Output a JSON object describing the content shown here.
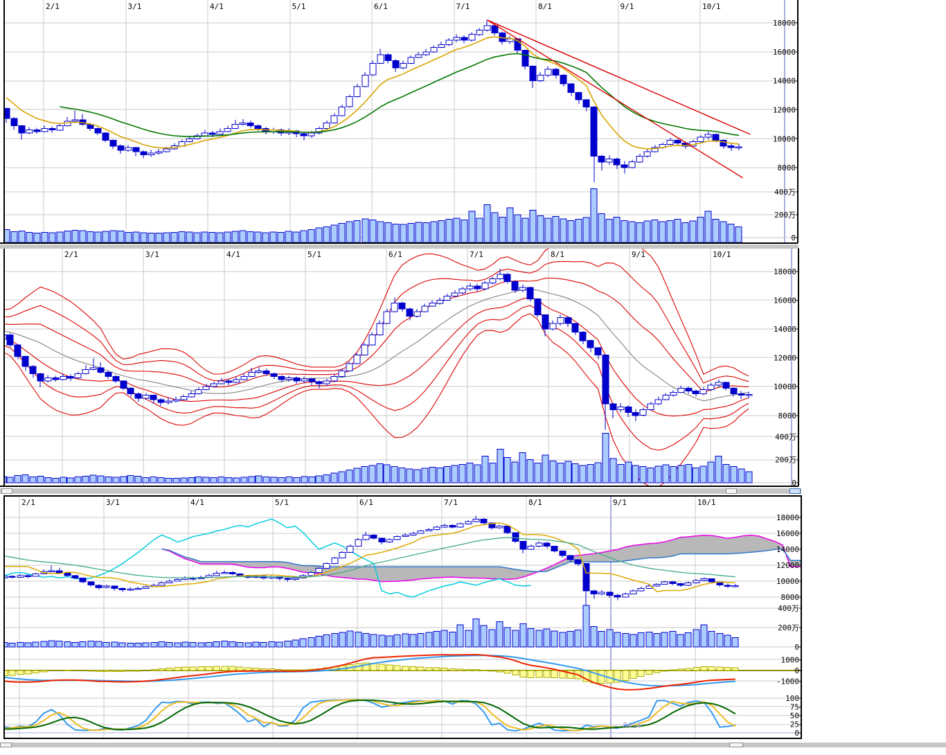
{
  "app": {
    "description": "three stacked daily stock chart panels with volume and indicators"
  },
  "annotation": {
    "code_label": "- 8414"
  },
  "colors": {
    "candle": "#0000cc",
    "candle_up_fill": "#ffffff",
    "volume_fill": "#aaccff",
    "grid": "#c9c9c9",
    "special_grid": "#a8aede",
    "border": "#000000",
    "ma_short": "#d9a400",
    "ma_long": "#007700",
    "trendline": "#dd0000",
    "band": "#dd0000",
    "band_mid": "#808080",
    "cloud": "#b8b8b8",
    "span_a": "#ee00ee",
    "span_b": "#3377cc",
    "chikou": "#00ccdd",
    "tenkan": "#ddaa00",
    "kijun_ema": "#44aa88",
    "macd_line": "#ee2200",
    "macd_signal": "#3399ee",
    "macd_hist_fill": "#ffff99",
    "macd_hist_stroke": "#aaaa00",
    "macd_zero": "#8b8b00",
    "stoch_k": "#3399ee",
    "stoch_d": "#eebb22",
    "stoch_sd": "#006600",
    "label": "#000000",
    "code_label": "#9999cc",
    "scrollbar": "#c6c6c6"
  },
  "chart_data": {
    "type": "candlestick-multi-panel",
    "x_axis_months": [
      "2/1",
      "3/1",
      "4/1",
      "5/1",
      "6/1",
      "7/1",
      "8/1",
      "9/1",
      "10/1"
    ],
    "y_axis": {
      "price_tick_labels": [
        "18000",
        "16000",
        "14000",
        "12000",
        "10000",
        "8000"
      ],
      "price_tick_values": [
        18000,
        16000,
        14000,
        12000,
        10000,
        8000
      ],
      "volume_tick_labels": [
        "400万",
        "200万",
        "0"
      ],
      "volume_tick_values": [
        400,
        200,
        0
      ],
      "macd_tick_labels": [
        "1000",
        "0",
        "-1000"
      ],
      "macd_tick_values": [
        1000,
        0,
        -1000
      ],
      "stoch_tick_labels": [
        "100",
        "75",
        "50",
        "25",
        "0"
      ],
      "stoch_tick_values": [
        100,
        75,
        50,
        25,
        0
      ]
    },
    "panels": [
      {
        "id": "ma-panel",
        "overlays": [
          "short-ma",
          "long-ma",
          "trendlines",
          "volume"
        ]
      },
      {
        "id": "bollinger-panel",
        "overlays": [
          "mid-line",
          "bands-1-2-3-sigma",
          "volume"
        ]
      },
      {
        "id": "ichimoku-panel",
        "overlays": [
          "cloud",
          "tenkan",
          "kijun-ema",
          "chikou",
          "volume",
          "macd",
          "stochastics"
        ]
      }
    ],
    "pre_history_closes": [
      14800,
      14500,
      14150,
      13900,
      13700,
      13500,
      13400,
      13300
    ],
    "ohlc": [
      [
        13300,
        13750,
        13150,
        13600
      ],
      [
        13600,
        13700,
        12750,
        12900
      ],
      [
        12900,
        12950,
        11900,
        12100
      ],
      [
        12100,
        12150,
        11100,
        11400
      ],
      [
        11400,
        11500,
        10600,
        10900
      ],
      [
        10900,
        10950,
        9950,
        10400
      ],
      [
        10400,
        10800,
        10300,
        10600
      ],
      [
        10600,
        10750,
        10350,
        10500
      ],
      [
        10500,
        10900,
        10450,
        10700
      ],
      [
        10700,
        10850,
        10400,
        10600
      ],
      [
        10600,
        11050,
        10550,
        10900
      ],
      [
        10900,
        11500,
        10850,
        11200
      ],
      [
        11200,
        11950,
        11150,
        11300
      ],
      [
        11300,
        11700,
        10900,
        11000
      ],
      [
        11000,
        11100,
        10550,
        10700
      ],
      [
        10700,
        10800,
        10250,
        10400
      ],
      [
        10400,
        10450,
        9750,
        9900
      ],
      [
        9900,
        9950,
        9300,
        9500
      ],
      [
        9500,
        9600,
        8950,
        9200
      ],
      [
        9200,
        9550,
        9100,
        9400
      ],
      [
        9400,
        9450,
        8800,
        9100
      ],
      [
        9100,
        9200,
        8650,
        8900
      ],
      [
        8900,
        9250,
        8750,
        9000
      ],
      [
        9000,
        9300,
        8900,
        9100
      ],
      [
        9100,
        9450,
        9050,
        9300
      ],
      [
        9300,
        9700,
        9250,
        9500
      ],
      [
        9500,
        9950,
        9450,
        9800
      ],
      [
        9800,
        10200,
        9750,
        10000
      ],
      [
        10000,
        10350,
        9950,
        10200
      ],
      [
        10200,
        10600,
        10150,
        10400
      ],
      [
        10400,
        10550,
        10100,
        10300
      ],
      [
        10300,
        10700,
        10250,
        10500
      ],
      [
        10500,
        10900,
        10450,
        10700
      ],
      [
        10700,
        11300,
        10650,
        11000
      ],
      [
        11000,
        11350,
        10900,
        11100
      ],
      [
        11100,
        11250,
        10750,
        10900
      ],
      [
        10900,
        11000,
        10550,
        10700
      ],
      [
        10700,
        10800,
        10300,
        10500
      ],
      [
        10500,
        10750,
        10350,
        10600
      ],
      [
        10600,
        10700,
        10200,
        10400
      ],
      [
        10400,
        10700,
        10250,
        10550
      ],
      [
        10550,
        10600,
        10100,
        10350
      ],
      [
        10350,
        10450,
        9900,
        10200
      ],
      [
        10200,
        10550,
        10050,
        10400
      ],
      [
        10400,
        10850,
        10300,
        10700
      ],
      [
        10700,
        11250,
        10600,
        11100
      ],
      [
        11100,
        11750,
        11050,
        11600
      ],
      [
        11600,
        12350,
        11550,
        12200
      ],
      [
        12200,
        13050,
        12150,
        12900
      ],
      [
        12900,
        13800,
        12850,
        13600
      ],
      [
        13600,
        14600,
        13550,
        14400
      ],
      [
        14400,
        15400,
        14350,
        15200
      ],
      [
        15200,
        16200,
        15150,
        15800
      ],
      [
        15800,
        15900,
        15200,
        15400
      ],
      [
        15400,
        15500,
        14600,
        14900
      ],
      [
        14900,
        15400,
        14800,
        15200
      ],
      [
        15200,
        15750,
        15150,
        15600
      ],
      [
        15600,
        16000,
        15550,
        15800
      ],
      [
        15800,
        16200,
        15700,
        16000
      ],
      [
        16000,
        16450,
        15950,
        16300
      ],
      [
        16300,
        16700,
        16250,
        16500
      ],
      [
        16500,
        16950,
        16400,
        16800
      ],
      [
        16800,
        17200,
        16650,
        17000
      ],
      [
        17000,
        17150,
        16600,
        16800
      ],
      [
        16800,
        17350,
        16700,
        17200
      ],
      [
        17200,
        17650,
        17100,
        17500
      ],
      [
        17500,
        18200,
        17400,
        17800
      ],
      [
        17800,
        17900,
        17150,
        17300
      ],
      [
        17300,
        17400,
        16500,
        16700
      ],
      [
        16700,
        17100,
        16550,
        16900
      ],
      [
        16900,
        16950,
        15900,
        16100
      ],
      [
        16100,
        16150,
        14800,
        15000
      ],
      [
        15000,
        15050,
        13500,
        14000
      ],
      [
        14000,
        14600,
        13900,
        14400
      ],
      [
        14400,
        15000,
        14250,
        14800
      ],
      [
        14800,
        14900,
        14150,
        14400
      ],
      [
        14400,
        14450,
        13600,
        13800
      ],
      [
        13800,
        13850,
        12950,
        13200
      ],
      [
        13200,
        13250,
        12400,
        12700
      ],
      [
        12700,
        12750,
        11900,
        12200
      ],
      [
        12200,
        12250,
        7000,
        8800
      ],
      [
        8800,
        8900,
        7800,
        8400
      ],
      [
        8400,
        8850,
        8200,
        8600
      ],
      [
        8600,
        8700,
        7900,
        8200
      ],
      [
        8200,
        8450,
        7600,
        8000
      ],
      [
        8000,
        8550,
        7950,
        8400
      ],
      [
        8400,
        8950,
        8350,
        8800
      ],
      [
        8800,
        9300,
        8700,
        9100
      ],
      [
        9100,
        9550,
        9050,
        9400
      ],
      [
        9400,
        9750,
        9300,
        9600
      ],
      [
        9600,
        10050,
        9550,
        9900
      ],
      [
        9900,
        10000,
        9500,
        9700
      ],
      [
        9700,
        9800,
        9300,
        9500
      ],
      [
        9500,
        9950,
        9400,
        9800
      ],
      [
        9800,
        10250,
        9700,
        10100
      ],
      [
        10100,
        10500,
        9950,
        10300
      ],
      [
        10300,
        10350,
        9750,
        9900
      ],
      [
        9900,
        9950,
        9300,
        9500
      ],
      [
        9500,
        9700,
        9150,
        9400
      ],
      [
        9400,
        9650,
        9200,
        9450
      ]
    ],
    "volume_man": [
      55,
      48,
      62,
      70,
      52,
      58,
      45,
      40,
      47,
      42,
      50,
      58,
      65,
      60,
      52,
      48,
      55,
      62,
      58,
      45,
      50,
      44,
      40,
      38,
      42,
      46,
      52,
      48,
      44,
      50,
      46,
      42,
      48,
      55,
      60,
      52,
      48,
      44,
      50,
      46,
      55,
      50,
      60,
      70,
      85,
      95,
      110,
      125,
      140,
      150,
      165,
      155,
      140,
      130,
      120,
      115,
      125,
      135,
      130,
      140,
      150,
      160,
      170,
      155,
      230,
      170,
      290,
      220,
      180,
      260,
      200,
      170,
      240,
      190,
      170,
      185,
      165,
      150,
      160,
      175,
      430,
      210,
      160,
      180,
      150,
      140,
      130,
      145,
      155,
      140,
      150,
      160,
      130,
      145,
      180,
      230,
      160,
      140,
      120,
      95
    ],
    "trendlines": [
      {
        "from_index": 66,
        "from_price": 18200,
        "to_index": 100.5,
        "to_price": 10300
      },
      {
        "from_index": 66,
        "from_price": 18200,
        "to_index": 99.5,
        "to_price": 7300
      }
    ]
  }
}
